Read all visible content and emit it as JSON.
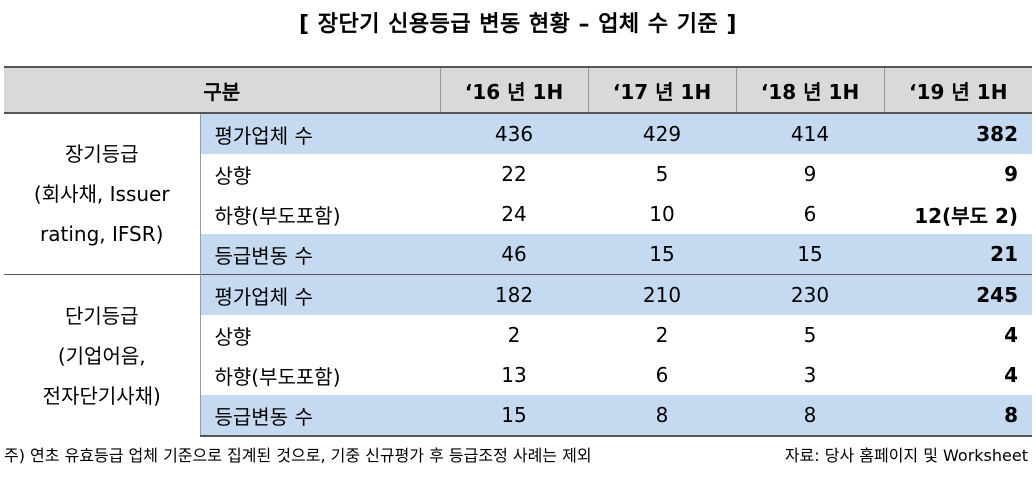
{
  "title": "[ 장단기 신용등급 변동 현황 – 업체 수 기준 ]",
  "header": {
    "category": "구분",
    "years": [
      "‘16 년 1H",
      "‘17 년 1H",
      "‘18 년 1H",
      "‘19 년 1H"
    ]
  },
  "groups": [
    {
      "label_lines": [
        "장기등급",
        "(회사채, Issuer",
        "rating, IFSR)"
      ],
      "rows": [
        {
          "item": "평가업체 수",
          "values": [
            "436",
            "429",
            "414",
            "382"
          ]
        },
        {
          "item": "상향",
          "values": [
            "22",
            "5",
            "9",
            "9"
          ]
        },
        {
          "item": "하향(부도포함)",
          "values": [
            "24",
            "10",
            "6",
            "12(부도 2)"
          ]
        },
        {
          "item": "등급변동 수",
          "values": [
            "46",
            "15",
            "15",
            "21"
          ]
        }
      ]
    },
    {
      "label_lines": [
        "단기등급",
        "(기업어음,",
        "전자단기사채)"
      ],
      "rows": [
        {
          "item": "평가업체 수",
          "values": [
            "182",
            "210",
            "230",
            "245"
          ]
        },
        {
          "item": "상향",
          "values": [
            "2",
            "2",
            "5",
            "4"
          ]
        },
        {
          "item": "하향(부도포함)",
          "values": [
            "13",
            "6",
            "3",
            "4"
          ]
        },
        {
          "item": "등급변동 수",
          "values": [
            "15",
            "8",
            "8",
            "8"
          ]
        }
      ]
    }
  ],
  "footnote": "주) 연초 유효등급 업체 기준으로 집계된 것으로, 기중 신규평가 후 등급조정 사례는 제외",
  "source": "자료: 당사 홈페이지 및 Worksheet",
  "colors": {
    "header_bg": "#d9d9d9",
    "highlight_row_bg": "#c5d9f1"
  }
}
